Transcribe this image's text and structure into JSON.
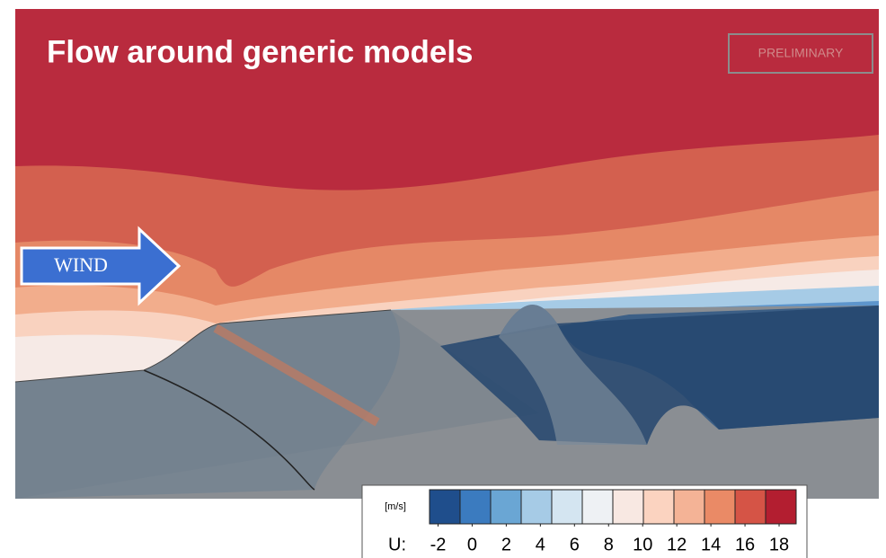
{
  "title": "Flow around generic models",
  "badge": "PRELIMINARY",
  "arrow_label": "WIND",
  "colorbar": {
    "unit": "[m/s]",
    "label": "U:",
    "lim": [
      -2.5,
      19
    ],
    "ticks": [
      -2,
      0,
      2,
      4,
      6,
      8,
      10,
      12,
      14,
      16,
      18
    ],
    "colors": [
      "#1f4e8c",
      "#3b7bbf",
      "#6aa6d4",
      "#a6cbe6",
      "#d4e5f1",
      "#eef1f4",
      "#f8e8e2",
      "#fbd3c0",
      "#f4b396",
      "#ea8a66",
      "#d55446",
      "#b31e30"
    ]
  }
}
